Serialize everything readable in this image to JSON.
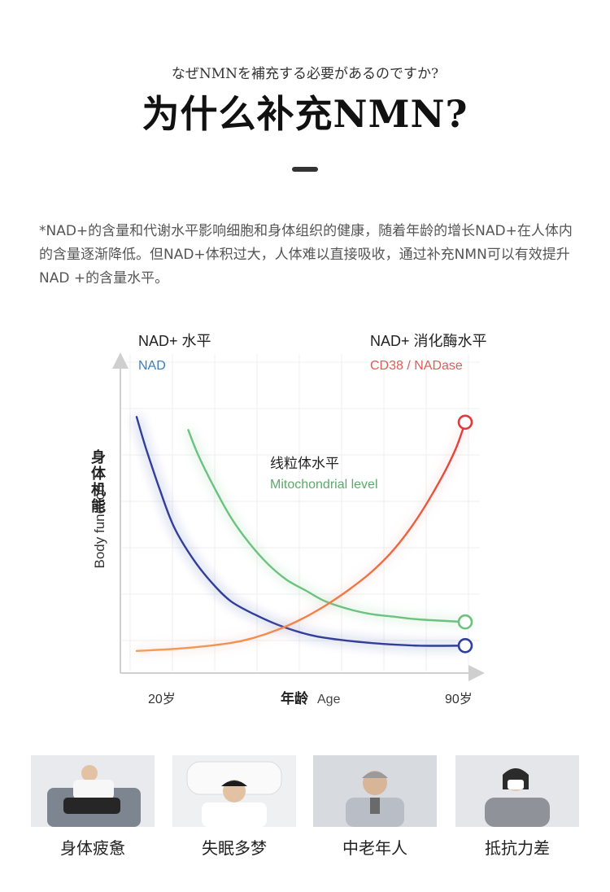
{
  "header": {
    "subtitle_jp": "なぜNMNを補充する必要があるのですか?",
    "title": "为什么补充NMN?"
  },
  "intro": {
    "text": "*NAD+的含量和代谢水平影响细胞和身体组织的健康，随着年龄的增长NAD+在人体内的含量逐渐降低。但NAD+体积过大，人体难以直接吸收，通过补充NMN可以有效提升NAD +的含量水平。"
  },
  "chart_data": {
    "type": "line",
    "title": "",
    "ylabel_cn": "身体机能",
    "ylabel_en": "Body function",
    "xlabel_cn": "年龄",
    "xlabel_en": "Age",
    "x_ticks": [
      "20岁",
      "90岁"
    ],
    "xlim": [
      20,
      90
    ],
    "ylim": [
      0,
      100
    ],
    "grid": true,
    "labels": {
      "nad_title": "NAD+ 水平",
      "nad_sub": "NAD",
      "cd38_title": "NAD+ 消化酶水平",
      "cd38_sub": "CD38 / NADase",
      "mito_title": "线粒体水平",
      "mito_sub": "Mitochondrial level"
    },
    "colors": {
      "nad": "#2f3f9a",
      "mito": "#6cc27f",
      "cd38": "#e23a3a",
      "cd38_start": "#f2a057",
      "nad_label": "#3a7fc0",
      "cd38_label": "#e05a5a",
      "mito_label": "#5aaa6a"
    },
    "series": [
      {
        "name": "NAD",
        "x": [
          20,
          22,
          25,
          28,
          32,
          36,
          40,
          45,
          50,
          55,
          60,
          70,
          80,
          90
        ],
        "values": [
          90,
          78,
          62,
          48,
          36,
          27,
          20,
          15,
          11,
          8,
          6,
          4,
          3,
          3
        ]
      },
      {
        "name": "Mitochondrial level",
        "x": [
          31,
          33,
          36,
          40,
          44,
          48,
          52,
          56,
          60,
          65,
          70,
          75,
          80,
          90
        ],
        "values": [
          85,
          76,
          65,
          52,
          42,
          34,
          28,
          24,
          20,
          17,
          15,
          14,
          13,
          12
        ]
      },
      {
        "name": "CD38 / NADase",
        "x": [
          20,
          30,
          40,
          45,
          50,
          55,
          60,
          65,
          70,
          75,
          80,
          85,
          88,
          90
        ],
        "values": [
          1,
          2,
          4,
          6,
          9,
          13,
          18,
          24,
          31,
          40,
          52,
          67,
          78,
          88
        ]
      }
    ]
  },
  "photos": [
    {
      "label": "身体疲惫",
      "icon": "tired-person-photo"
    },
    {
      "label": "失眠多梦",
      "icon": "insomnia-person-photo"
    },
    {
      "label": "中老年人",
      "icon": "elderly-person-photo"
    },
    {
      "label": "抵抗力差",
      "icon": "sick-person-photo"
    }
  ]
}
